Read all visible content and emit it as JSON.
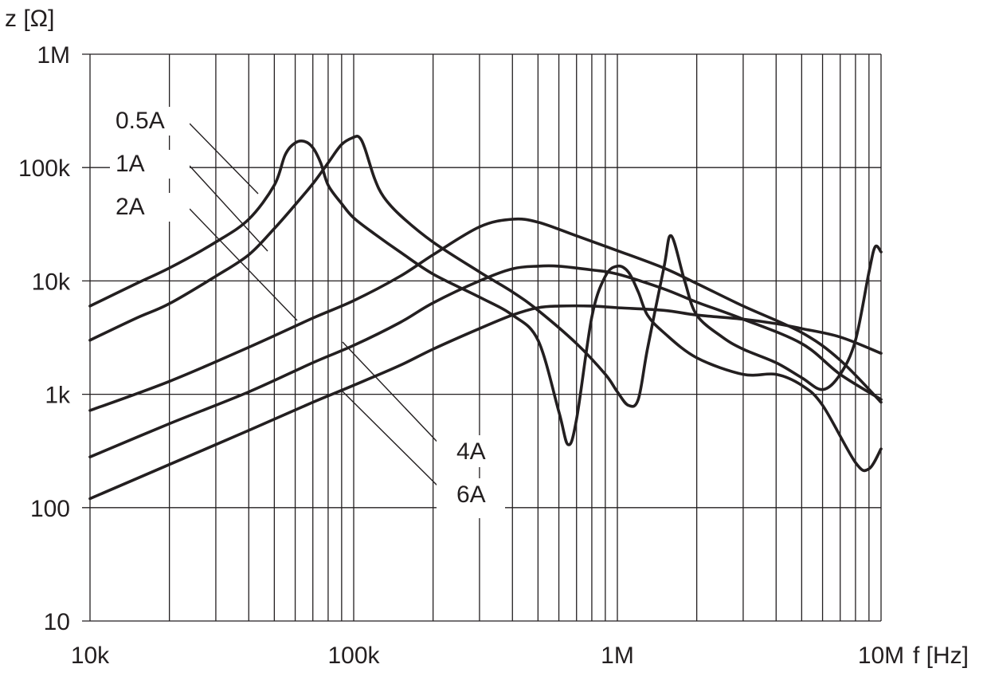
{
  "chart_data": {
    "type": "line",
    "y_axis_label": "z [Ω]",
    "x_axis_label": "f [Hz]",
    "x_scale": "log",
    "y_scale": "log",
    "xlim": [
      10000,
      10000000
    ],
    "ylim": [
      10,
      1000000
    ],
    "grid": true,
    "x_ticks": [
      {
        "value": 10000,
        "label": "10k"
      },
      {
        "value": 100000,
        "label": "100k"
      },
      {
        "value": 1000000,
        "label": "1M"
      },
      {
        "value": 10000000,
        "label": "10M"
      }
    ],
    "y_ticks": [
      {
        "value": 10,
        "label": "10"
      },
      {
        "value": 100,
        "label": "100"
      },
      {
        "value": 1000,
        "label": "1k"
      },
      {
        "value": 10000,
        "label": "10k"
      },
      {
        "value": 100000,
        "label": "100k"
      },
      {
        "value": 1000000,
        "label": "1M"
      }
    ],
    "series": [
      {
        "name": "0.5A",
        "x": [
          10000,
          15000,
          20000,
          30000,
          40000,
          50000,
          55000,
          60000,
          65000,
          70000,
          75000,
          80000,
          90000,
          100000,
          120000,
          150000,
          200000,
          300000,
          400000,
          500000,
          600000,
          650000,
          700000,
          800000,
          900000,
          1000000,
          1100000,
          1200000,
          1300000,
          1500000,
          2000000,
          3000000,
          4000000,
          5000000,
          6000000,
          8000000,
          9000000,
          10000000
        ],
        "y": [
          6000,
          9500,
          13000,
          22000,
          35000,
          70000,
          130000,
          165000,
          170000,
          150000,
          110000,
          70000,
          48000,
          36000,
          26000,
          18000,
          11500,
          7200,
          5000,
          3000,
          700,
          360,
          600,
          4800,
          11000,
          13500,
          12000,
          8000,
          5000,
          3500,
          2100,
          1500,
          1500,
          1200,
          800,
          250,
          220,
          330
        ]
      },
      {
        "name": "1A",
        "x": [
          10000,
          15000,
          20000,
          30000,
          40000,
          50000,
          60000,
          70000,
          80000,
          90000,
          100000,
          105000,
          110000,
          120000,
          130000,
          150000,
          200000,
          300000,
          400000,
          500000,
          700000,
          900000,
          1000000,
          1100000,
          1200000,
          1300000,
          1500000,
          1600000,
          1800000,
          2000000,
          2500000,
          3000000,
          4000000,
          5000000,
          6000000,
          7000000,
          8000000,
          9000000,
          9500000,
          10000000
        ],
        "y": [
          3000,
          4700,
          6300,
          11000,
          17000,
          29000,
          47000,
          72000,
          110000,
          160000,
          185000,
          185000,
          150000,
          80000,
          55000,
          38000,
          22000,
          12000,
          8000,
          5500,
          2800,
          1500,
          1050,
          800,
          900,
          2500,
          13000,
          25000,
          10000,
          5000,
          3200,
          2500,
          1900,
          1400,
          1100,
          1500,
          3000,
          12000,
          20000,
          18000
        ]
      },
      {
        "name": "2A",
        "x": [
          10000,
          20000,
          40000,
          70000,
          100000,
          150000,
          200000,
          300000,
          400000,
          500000,
          700000,
          1000000,
          1500000,
          2000000,
          3000000,
          5000000,
          7000000,
          10000000
        ],
        "y": [
          720,
          1300,
          2600,
          4700,
          6700,
          11000,
          17000,
          30000,
          35000,
          33000,
          25000,
          18500,
          13000,
          9500,
          6000,
          3500,
          2000,
          850
        ]
      },
      {
        "name": "4A",
        "x": [
          10000,
          20000,
          40000,
          70000,
          100000,
          150000,
          200000,
          300000,
          400000,
          500000,
          600000,
          800000,
          1000000,
          1500000,
          2000000,
          3000000,
          5000000,
          7000000,
          10000000
        ],
        "y": [
          280,
          550,
          1050,
          1900,
          2700,
          4300,
          6400,
          10000,
          12800,
          13500,
          13500,
          12500,
          11500,
          8500,
          6500,
          4600,
          2800,
          1500,
          900
        ]
      },
      {
        "name": "6A",
        "x": [
          10000,
          20000,
          40000,
          70000,
          100000,
          150000,
          200000,
          300000,
          400000,
          500000,
          600000,
          800000,
          1000000,
          1500000,
          2000000,
          3000000,
          4000000,
          5000000,
          7000000,
          10000000
        ],
        "y": [
          120,
          240,
          480,
          850,
          1200,
          1800,
          2500,
          3800,
          5000,
          5800,
          6000,
          6000,
          5800,
          5500,
          5000,
          4600,
          4200,
          3800,
          3200,
          2300
        ]
      }
    ],
    "legend_labels": [
      {
        "text": "0.5A",
        "series": "0.5A"
      },
      {
        "text": "1A",
        "series": "1A"
      },
      {
        "text": "2A",
        "series": "2A"
      },
      {
        "text": "4A",
        "series": "4A"
      },
      {
        "text": "6A",
        "series": "6A"
      }
    ]
  }
}
